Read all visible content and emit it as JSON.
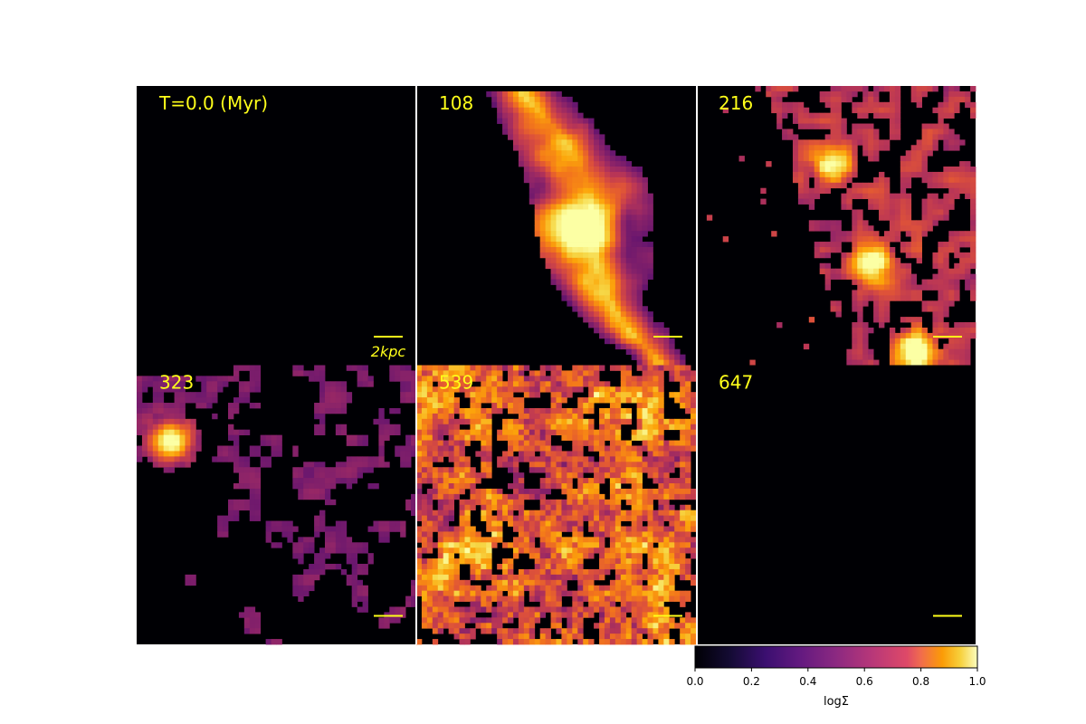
{
  "chart_data": {
    "type": "heatmap",
    "layout": {
      "rows": 2,
      "cols": 3
    },
    "quantity": "surface density",
    "colormap": "inferno",
    "scale_bar": {
      "label": "2kpc",
      "length_kpc": 2
    },
    "panels": [
      {
        "label": "T=0.0 (Myr)",
        "time_myr": 0.0,
        "content": "empty",
        "blobs": []
      },
      {
        "label": "108",
        "time_myr": 108,
        "content": "elongated diagonal stream",
        "blobs": [
          {
            "x": 0.52,
            "y": 0.52,
            "strength": 1.0
          }
        ]
      },
      {
        "label": "216",
        "time_myr": 216,
        "content": "filamentary clumps",
        "blobs": [
          {
            "x": 0.49,
            "y": 0.27,
            "strength": 0.9
          },
          {
            "x": 0.63,
            "y": 0.64,
            "strength": 0.95
          },
          {
            "x": 0.78,
            "y": 0.96,
            "strength": 1.0
          }
        ]
      },
      {
        "label": "323",
        "time_myr": 323,
        "content": "sparse clumps",
        "blobs": [
          {
            "x": 0.12,
            "y": 0.27,
            "strength": 1.0
          }
        ]
      },
      {
        "label": "539",
        "time_myr": 539,
        "content": "widespread dense emission",
        "blobs": []
      },
      {
        "label": "647",
        "time_myr": 647,
        "content": "empty",
        "blobs": []
      }
    ],
    "colorbar": {
      "label": "logΣ",
      "range": [
        0.0,
        1.0
      ],
      "ticks": [
        "0.0",
        "0.2",
        "0.4",
        "0.6",
        "0.8",
        "1.0"
      ],
      "orientation": "horizontal",
      "placement": "bottom-right"
    }
  }
}
